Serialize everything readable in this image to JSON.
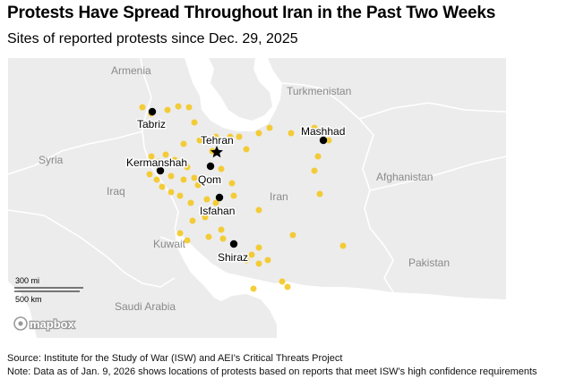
{
  "title": "Protests Have Spread Throughout Iran in the Past Two Weeks",
  "subtitle": "Sites of reported protests since Dec. 29, 2025",
  "map": {
    "countries": [
      "Armenia",
      "Turkmenistan",
      "Syria",
      "Afghanistan",
      "Iraq",
      "Iran",
      "Kuwait",
      "Pakistan",
      "Saudi Arabia"
    ],
    "cities": [
      "Tabriz",
      "Mashhad",
      "Tehran",
      "Kermanshah",
      "Qom",
      "Isfahan",
      "Shiraz"
    ],
    "scale_bar": {
      "miles_label": "300 mi",
      "km_label": "500 km"
    },
    "attribution": "mapbox",
    "colors": {
      "protest": "#f5c518",
      "city": "#000000",
      "land": "#ececec",
      "water": "#ffffff",
      "label": "#8a8a8a"
    }
  },
  "footer": {
    "source": "Source: Institute for the Study of War (ISW) and AEI's Critical Threats Project",
    "note": "Note: Data as of Jan. 9, 2026 shows locations of protests based on reports that meet ISW's high confidence requirements"
  }
}
